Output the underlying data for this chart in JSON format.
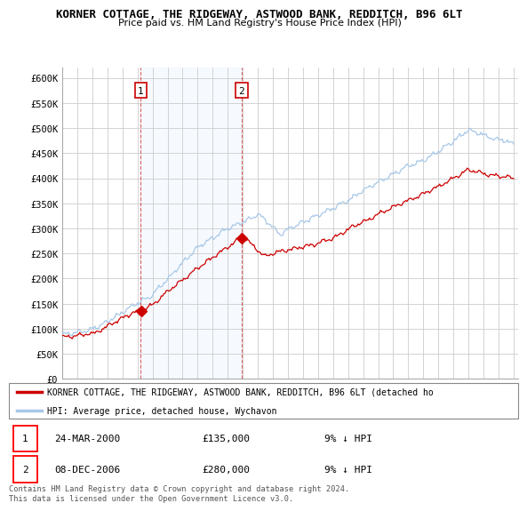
{
  "title": "KORNER COTTAGE, THE RIDGEWAY, ASTWOOD BANK, REDDITCH, B96 6LT",
  "subtitle": "Price paid vs. HM Land Registry's House Price Index (HPI)",
  "ylabel_ticks": [
    "£0",
    "£50K",
    "£100K",
    "£150K",
    "£200K",
    "£250K",
    "£300K",
    "£350K",
    "£400K",
    "£450K",
    "£500K",
    "£550K",
    "£600K"
  ],
  "ylim": [
    0,
    620000
  ],
  "yticks": [
    0,
    50000,
    100000,
    150000,
    200000,
    250000,
    300000,
    350000,
    400000,
    450000,
    500000,
    550000,
    600000
  ],
  "hpi_color": "#a8c8e8",
  "price_color": "#cc0000",
  "shade_color": "#ddeeff",
  "sale1_date_label": "24-MAR-2000",
  "sale1_price": 135000,
  "sale1_hpi_pct": "9% ↓ HPI",
  "sale2_date_label": "08-DEC-2006",
  "sale2_price": 280000,
  "sale2_hpi_pct": "9% ↓ HPI",
  "legend_label_price": "KORNER COTTAGE, THE RIDGEWAY, ASTWOOD BANK, REDDITCH, B96 6LT (detached ho",
  "legend_label_hpi": "HPI: Average price, detached house, Wychavon",
  "footnote": "Contains HM Land Registry data © Crown copyright and database right 2024.\nThis data is licensed under the Open Government Licence v3.0.",
  "x_start_year": 1995,
  "x_end_year": 2025,
  "background_color": "#ffffff",
  "grid_color": "#cccccc",
  "sale1_year": 2000.21,
  "sale2_year": 2006.92
}
